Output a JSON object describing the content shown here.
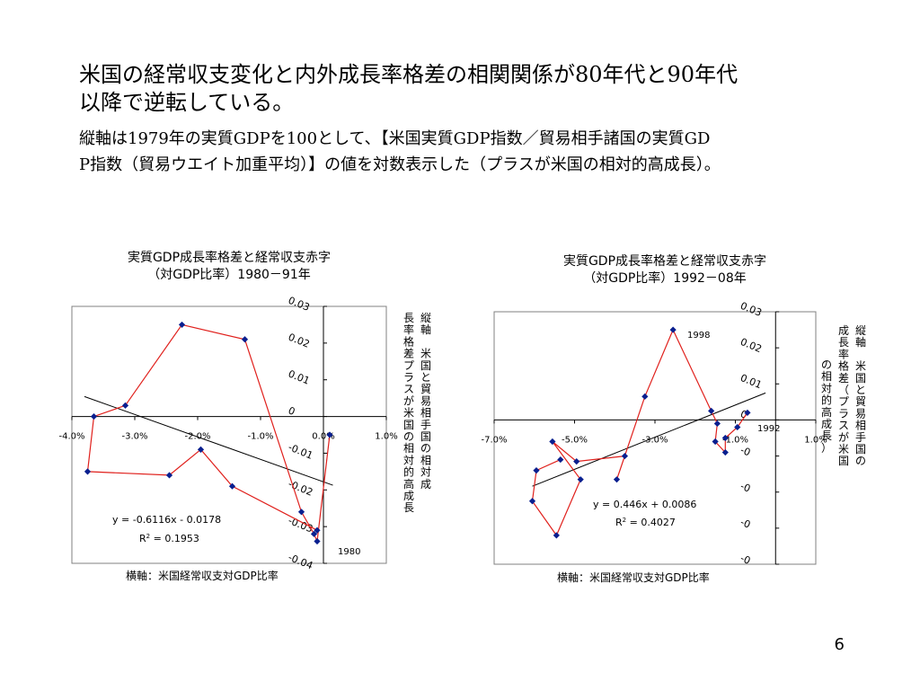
{
  "slide": {
    "title_line1": "米国の経常収支変化と内外成長率格差の相関関係が80年代と90年代",
    "title_line2": "以降で逆転している。",
    "note_line1": "縦軸は1979年の実質GDPを100として、【米国実質GDP指数／貿易相手諸国の実質GD",
    "note_line2": "P指数（貿易ウエイト加重平均）】の値を対数表示した（プラスが米国の相対的高成長）。",
    "page_number": "6"
  },
  "chart_data": [
    {
      "type": "scatter",
      "title_line1": "実質GDP成長率格差と経常収支赤字",
      "title_line2": "（対GDP比率）1980－91年",
      "xlabel": "横軸：米国経常収支対GDP比率",
      "ylabel_col1": "縦軸　米国と貿易相手国の相対成",
      "ylabel_col2": "長率格差プラスが米国の相対的高成長",
      "xlim": [
        -0.04,
        0.01
      ],
      "ylim": [
        -0.04,
        0.03
      ],
      "x_ticks": [
        "-4.0%",
        "-3.0%",
        "-2.0%",
        "-1.0%",
        "0.0%",
        "1.0%"
      ],
      "y_ticks": [
        "0.03",
        "0.02",
        "0.01",
        "0",
        "-0.01",
        "-0.02",
        "-0.03",
        "-0.04"
      ],
      "points": [
        {
          "x": 0.001,
          "y": -0.005
        },
        {
          "x": -0.001,
          "y": -0.034
        },
        {
          "x": -0.0015,
          "y": -0.032
        },
        {
          "x": -0.0035,
          "y": -0.026
        },
        {
          "x": -0.0125,
          "y": 0.021
        },
        {
          "x": -0.0225,
          "y": 0.025
        },
        {
          "x": -0.0315,
          "y": 0.003
        },
        {
          "x": -0.0365,
          "y": 0.0
        },
        {
          "x": -0.0375,
          "y": -0.015
        },
        {
          "x": -0.0245,
          "y": -0.016
        },
        {
          "x": -0.0195,
          "y": -0.009
        },
        {
          "x": -0.0145,
          "y": -0.019
        },
        {
          "x": -0.001,
          "y": -0.031
        }
      ],
      "trendline": {
        "slope": -0.6116,
        "intercept": -0.0178
      },
      "equation": "y = -0.6116x - 0.0178",
      "r2_label": "R",
      "r2_value": " = 0.1953",
      "point_label": "1980",
      "colors": {
        "series_line": "#e0201c",
        "marker": "#0a1f8f",
        "trend": "#000000"
      }
    },
    {
      "type": "scatter",
      "title_line1": "実質GDP成長率格差と経常収支赤字",
      "title_line2": "（対GDP比率）1992－08年",
      "xlabel": "横軸：米国経常収支対GDP比率",
      "ylabel_col1": "縦軸　米国と貿易相手国の",
      "ylabel_col2": "成長率格差（プラスが米国",
      "ylabel_col3": "の相対的高成長）",
      "xlim": [
        -0.07,
        0.01
      ],
      "ylim": [
        -0.04,
        0.03
      ],
      "x_ticks": [
        "-7.0%",
        "-5.0%",
        "-3.0%",
        "-1.0%",
        "1.0%"
      ],
      "y_ticks": [
        "0.03",
        "0.02",
        "0.01",
        "0",
        "-0",
        "-0",
        "-0",
        "-0"
      ],
      "points": [
        {
          "x": -0.007,
          "y": 0.002
        },
        {
          "x": -0.0095,
          "y": -0.002
        },
        {
          "x": -0.0125,
          "y": -0.005
        },
        {
          "x": -0.0125,
          "y": -0.009
        },
        {
          "x": -0.015,
          "y": -0.006
        },
        {
          "x": -0.0145,
          "y": -0.001
        },
        {
          "x": -0.016,
          "y": 0.0025
        },
        {
          "x": -0.0255,
          "y": 0.025
        },
        {
          "x": -0.0325,
          "y": 0.0065
        },
        {
          "x": -0.0395,
          "y": -0.0165
        },
        {
          "x": -0.0375,
          "y": -0.01
        },
        {
          "x": -0.0495,
          "y": -0.0115
        },
        {
          "x": -0.0555,
          "y": -0.006
        },
        {
          "x": -0.0485,
          "y": -0.0165
        },
        {
          "x": -0.0545,
          "y": -0.032
        },
        {
          "x": -0.0605,
          "y": -0.0225
        },
        {
          "x": -0.0595,
          "y": -0.014
        },
        {
          "x": -0.0535,
          "y": -0.011
        }
      ],
      "trendline": {
        "slope": 0.446,
        "intercept": 0.0086
      },
      "equation": "y = 0.446x + 0.0086",
      "r2_label": "R",
      "r2_value": " = 0.4027",
      "point_label_1": "1998",
      "point_label_2": "1992",
      "colors": {
        "series_line": "#e0201c",
        "marker": "#0a1f8f",
        "trend": "#000000"
      }
    }
  ]
}
